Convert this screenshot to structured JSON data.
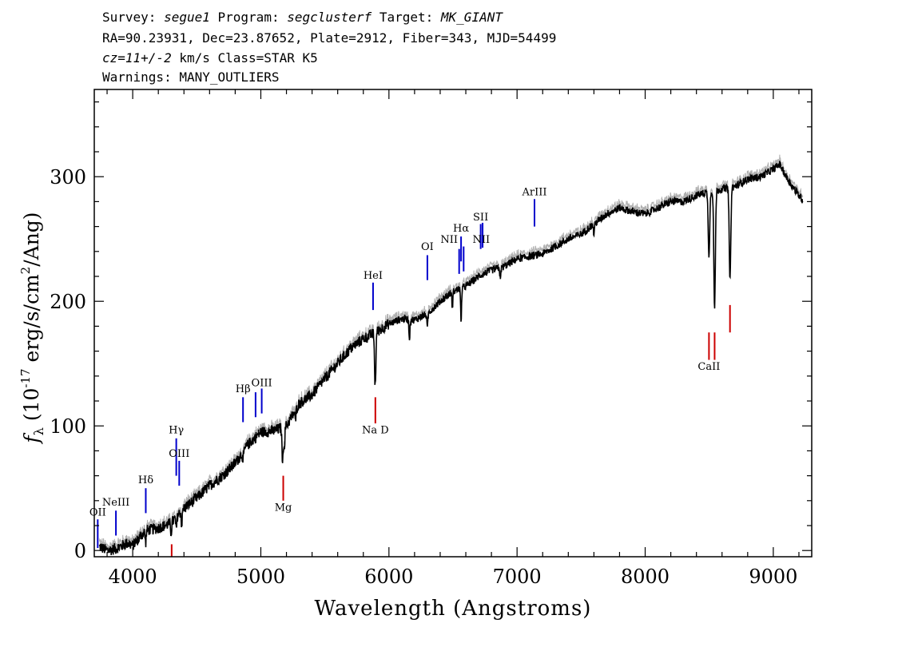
{
  "header": {
    "line1": {
      "survey_label": "Survey:",
      "survey": "segue1",
      "program_label": "Program:",
      "program": "segclusterf",
      "target_label": "Target:",
      "target": "MK_GIANT"
    },
    "line2": "RA=90.23931, Dec=23.87652, Plate=2912, Fiber=343, MJD=54499",
    "line3": {
      "cz": "cz=11+/-2",
      "rest": " km/s Class=STAR K5"
    },
    "line4": "Warnings: MANY_OUTLIERS"
  },
  "chart_data": {
    "type": "line",
    "title": "",
    "xlabel": "Wavelength (Angstroms)",
    "ylabel_prefix": "f",
    "ylabel_sub": "λ",
    "ylabel_units": "(10",
    "ylabel_exp": "-17",
    "ylabel_units2": " erg/s/cm",
    "ylabel_exp2": "2",
    "ylabel_units3": "/Ang)",
    "xlim": [
      3700,
      9300
    ],
    "ylim": [
      -5,
      370
    ],
    "x_ticks": [
      4000,
      5000,
      6000,
      7000,
      8000,
      9000
    ],
    "y_ticks": [
      0,
      100,
      200,
      300
    ],
    "x_tick_labels": [
      "4000",
      "5000",
      "6000",
      "7000",
      "8000",
      "9000"
    ],
    "y_tick_labels": [
      "0",
      "100",
      "200",
      "300"
    ],
    "grid": false,
    "series_color": "#000000",
    "error_color": "#b0b0b0",
    "spectrum_anchors": [
      [
        3740,
        3
      ],
      [
        3800,
        0
      ],
      [
        3850,
        1
      ],
      [
        3900,
        3
      ],
      [
        3960,
        6
      ],
      [
        4000,
        4
      ],
      [
        4100,
        16
      ],
      [
        4200,
        18
      ],
      [
        4300,
        22
      ],
      [
        4400,
        34
      ],
      [
        4500,
        42
      ],
      [
        4600,
        52
      ],
      [
        4700,
        60
      ],
      [
        4800,
        70
      ],
      [
        4900,
        85
      ],
      [
        5000,
        95
      ],
      [
        5100,
        96
      ],
      [
        5200,
        100
      ],
      [
        5300,
        118
      ],
      [
        5400,
        125
      ],
      [
        5500,
        138
      ],
      [
        5600,
        150
      ],
      [
        5700,
        162
      ],
      [
        5800,
        170
      ],
      [
        5900,
        175
      ],
      [
        6000,
        182
      ],
      [
        6100,
        186
      ],
      [
        6200,
        185
      ],
      [
        6300,
        190
      ],
      [
        6400,
        200
      ],
      [
        6500,
        208
      ],
      [
        6600,
        212
      ],
      [
        6700,
        220
      ],
      [
        6800,
        225
      ],
      [
        6900,
        228
      ],
      [
        7000,
        234
      ],
      [
        7100,
        236
      ],
      [
        7200,
        238
      ],
      [
        7300,
        244
      ],
      [
        7400,
        250
      ],
      [
        7500,
        254
      ],
      [
        7600,
        262
      ],
      [
        7700,
        270
      ],
      [
        7800,
        275
      ],
      [
        7900,
        272
      ],
      [
        8000,
        270
      ],
      [
        8100,
        275
      ],
      [
        8200,
        280
      ],
      [
        8300,
        280
      ],
      [
        8400,
        285
      ],
      [
        8500,
        288
      ],
      [
        8600,
        290
      ],
      [
        8700,
        292
      ],
      [
        8800,
        298
      ],
      [
        8900,
        300
      ],
      [
        9000,
        306
      ],
      [
        9050,
        310
      ],
      [
        9100,
        300
      ],
      [
        9150,
        292
      ],
      [
        9200,
        285
      ],
      [
        9230,
        282
      ]
    ],
    "absorption_features": [
      [
        4101,
        10
      ],
      [
        4300,
        8
      ],
      [
        4340,
        10
      ],
      [
        4383,
        12
      ],
      [
        4861,
        8
      ],
      [
        5167,
        15
      ],
      [
        5173,
        20
      ],
      [
        5184,
        15
      ],
      [
        5270,
        8
      ],
      [
        5890,
        30
      ],
      [
        5896,
        25
      ],
      [
        6160,
        15
      ],
      [
        6300,
        12
      ],
      [
        6495,
        12
      ],
      [
        6563,
        25
      ],
      [
        6870,
        10
      ],
      [
        7600,
        8
      ],
      [
        8498,
        50
      ],
      [
        8542,
        95
      ],
      [
        8662,
        75
      ]
    ],
    "emission_markers": [
      {
        "label": "OII",
        "x": 3727,
        "y_bot": 2,
        "y_top": 25,
        "label_y": 28,
        "color": "#0000cc"
      },
      {
        "label": "NeIII",
        "x": 3869,
        "y_bot": 12,
        "y_top": 32,
        "label_y": 36,
        "color": "#0000cc"
      },
      {
        "label": "Hδ",
        "x": 4102,
        "y_bot": 30,
        "y_top": 50,
        "label_y": 54,
        "color": "#0000cc"
      },
      {
        "label": "Hγ",
        "x": 4340,
        "y_bot": 60,
        "y_top": 90,
        "label_y": 94,
        "color": "#0000cc"
      },
      {
        "label": "OIII",
        "x": 4363,
        "y_bot": 52,
        "y_top": 72,
        "label_y": 75,
        "color": "#0000cc"
      },
      {
        "label": "Hβ",
        "x": 4861,
        "y_bot": 103,
        "y_top": 123,
        "label_y": 127,
        "color": "#0000cc"
      },
      {
        "label": "OIII",
        "x": 4959,
        "y_bot": 107,
        "y_top": 127,
        "label_y": 0,
        "color": "#0000cc"
      },
      {
        "label": "OIII",
        "x": 5007,
        "y_bot": 110,
        "y_top": 130,
        "label_y": 132,
        "color": "#0000cc"
      },
      {
        "label": "HeI",
        "x": 5876,
        "y_bot": 193,
        "y_top": 215,
        "label_y": 218,
        "color": "#0000cc"
      },
      {
        "label": "OI",
        "x": 6300,
        "y_bot": 217,
        "y_top": 237,
        "label_y": 241,
        "color": "#0000cc"
      },
      {
        "label": "NII",
        "x": 6548,
        "y_bot": 222,
        "y_top": 242,
        "label_y": 0,
        "color": "#0000cc"
      },
      {
        "label": "Hα",
        "x": 6563,
        "y_bot": 232,
        "y_top": 252,
        "label_y": 256,
        "color": "#0000cc"
      },
      {
        "label": "NII",
        "x": 6583,
        "y_bot": 224,
        "y_top": 244,
        "label_y": 0,
        "color": "#0000cc"
      },
      {
        "label": "SII",
        "x": 6716,
        "y_bot": 242,
        "y_top": 262,
        "label_y": 265,
        "color": "#0000cc"
      },
      {
        "label": "SII",
        "x": 6731,
        "y_bot": 243,
        "y_top": 263,
        "label_y": 0,
        "color": "#0000cc"
      },
      {
        "label": "ArIII",
        "x": 7136,
        "y_bot": 260,
        "y_top": 282,
        "label_y": 285,
        "color": "#0000cc"
      }
    ],
    "text_labels": [
      {
        "text": "NII",
        "x": 6470,
        "y": 247
      },
      {
        "text": "NII",
        "x": 6720,
        "y": 247
      }
    ],
    "absorption_markers": [
      {
        "label": "",
        "x": 4304,
        "y_bot": -5,
        "y_top": 5,
        "color": "#cc0000"
      },
      {
        "label": "Mg",
        "x": 5175,
        "y_bot": 40,
        "y_top": 60,
        "label_y": 32,
        "color": "#cc0000"
      },
      {
        "label": "Na D",
        "x": 5894,
        "y_bot": 102,
        "y_top": 123,
        "label_y": 94,
        "color": "#cc0000"
      },
      {
        "label": "CaII",
        "x": 8498,
        "y_bot": 153,
        "y_top": 175,
        "label_y": 145,
        "color": "#cc0000"
      },
      {
        "label": "",
        "x": 8542,
        "y_bot": 153,
        "y_top": 175,
        "color": "#cc0000"
      },
      {
        "label": "",
        "x": 8662,
        "y_bot": 175,
        "y_top": 197,
        "color": "#cc0000"
      }
    ]
  }
}
